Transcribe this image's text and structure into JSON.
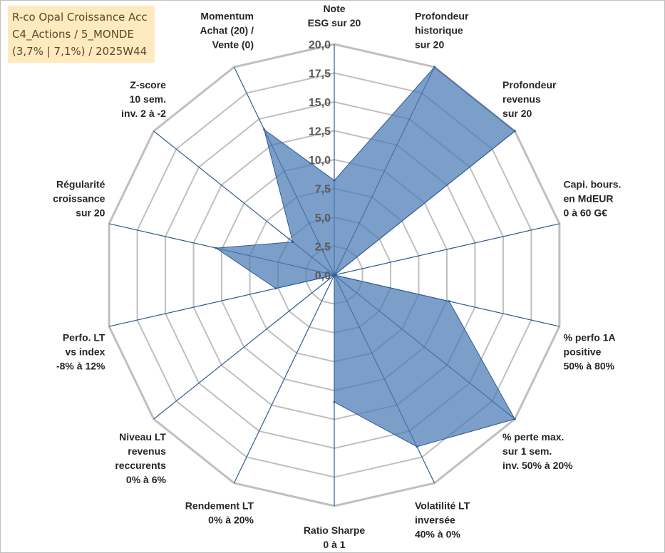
{
  "title": {
    "lines": [
      "R-co Opal Croissance Acc",
      "C4_Actions / 5_MONDE",
      "(3,7% | 7,1%) / 2025W44"
    ]
  },
  "colors": {
    "fill": "#4a7ab5",
    "stroke": "#2e5b94",
    "title_bg": "#ffe9bf",
    "grid": "#bfbfbf",
    "spoke": "#2e5b94"
  },
  "chart_data": {
    "type": "radar",
    "r_min": 0,
    "r_max": 20,
    "ticks": [
      "0,0",
      "2,5",
      "5,0",
      "7,5",
      "10,0",
      "12,5",
      "15,0",
      "17,5",
      "20,0"
    ],
    "grid_levels": 8,
    "axes": [
      {
        "label": [
          "Note",
          "ESG sur 20"
        ],
        "value": 8.2
      },
      {
        "label": [
          "Profondeur",
          "historique",
          "sur 20"
        ],
        "value": 20.0
      },
      {
        "label": [
          "Profondeur",
          "revenus",
          "sur 20"
        ],
        "value": 20.0
      },
      {
        "label": [
          "Capi. bours.",
          "en MdEUR",
          "0 à 60 G€"
        ],
        "value": 0.0
      },
      {
        "label": [
          "% perfo 1A",
          "positive",
          "50% à 80%"
        ],
        "value": 10.2
      },
      {
        "label": [
          "% perte max.",
          "sur 1 sem.",
          "inv. 50% à 20%"
        ],
        "value": 20.0
      },
      {
        "label": [
          "Volatilité LT",
          "inversée",
          "40% à 0%"
        ],
        "value": 16.5
      },
      {
        "label": [
          "Ratio Sharpe",
          "0 à 1"
        ],
        "value": 11.0
      },
      {
        "label": [
          "Rendement LT",
          "0% à 20%"
        ],
        "value": 0.0
      },
      {
        "label": [
          "Niveau LT",
          "revenus",
          "reccurents",
          "0% à 6%"
        ],
        "value": 0.0
      },
      {
        "label": [
          "Perfo. LT",
          "vs index",
          "-8% à 12%"
        ],
        "value": 5.2
      },
      {
        "label": [
          "Régularité",
          "croissance",
          "sur 20"
        ],
        "value": 10.5
      },
      {
        "label": [
          "Z-score",
          "10 sem.",
          "inv. 2 à -2"
        ],
        "value": 4.6
      },
      {
        "label": [
          "Momentum",
          "Achat (20) /",
          "Vente (0)"
        ],
        "value": 14.0
      }
    ]
  }
}
